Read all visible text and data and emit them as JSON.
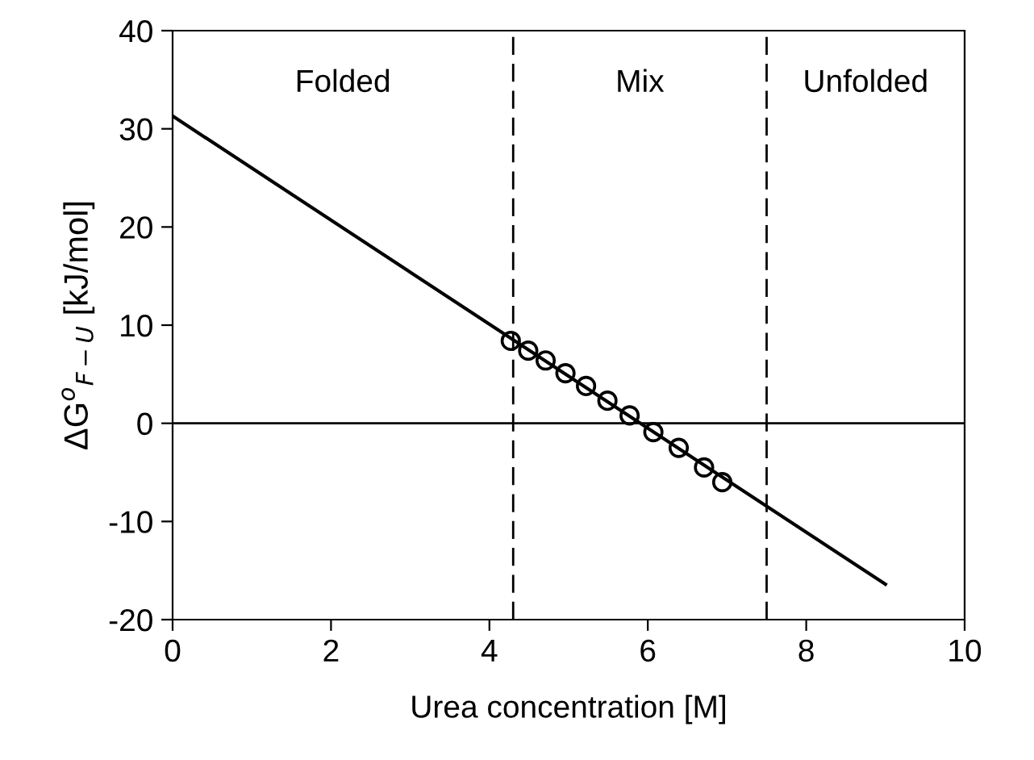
{
  "chart_data": {
    "type": "scatter",
    "xlabel": "Urea concentration [M]",
    "ylabel": "ΔG$^{o}$$_{F−U}$ [kJ/mol]",
    "xlim": [
      0,
      10
    ],
    "xticks": [
      0,
      2,
      4,
      6,
      8,
      10
    ],
    "ylim": [
      -20,
      40
    ],
    "yticks": [
      -20,
      -10,
      0,
      10,
      20,
      30,
      40
    ],
    "grid": false,
    "legend": false,
    "series": [
      {
        "color": "#000000",
        "marker": "circle",
        "x": [
          4.27,
          4.49,
          4.71,
          4.96,
          5.22,
          5.49,
          5.77,
          6.07,
          6.39,
          6.71,
          6.94
        ],
        "values": [
          8.4,
          7.4,
          6.4,
          5.1,
          3.8,
          2.3,
          0.8,
          -0.9,
          -2.5,
          -4.5,
          -6.0
        ]
      },
      {
        "type": "line",
        "color": "#000000",
        "line_style": "solid",
        "x": [
          0,
          9
        ],
        "values": [
          31.3,
          -16.4
        ]
      }
    ],
    "ref_lines": [
      {
        "axis": "y",
        "value": 0,
        "color": "#000000",
        "line_style": "solid"
      },
      {
        "axis": "x",
        "value": 4.3,
        "color": "#000000",
        "line_style": "dashed"
      },
      {
        "axis": "x",
        "value": 7.5,
        "color": "#000000",
        "line_style": "dashed"
      }
    ],
    "annotations": [
      "Folded",
      "Mix",
      "Unfolded"
    ]
  }
}
